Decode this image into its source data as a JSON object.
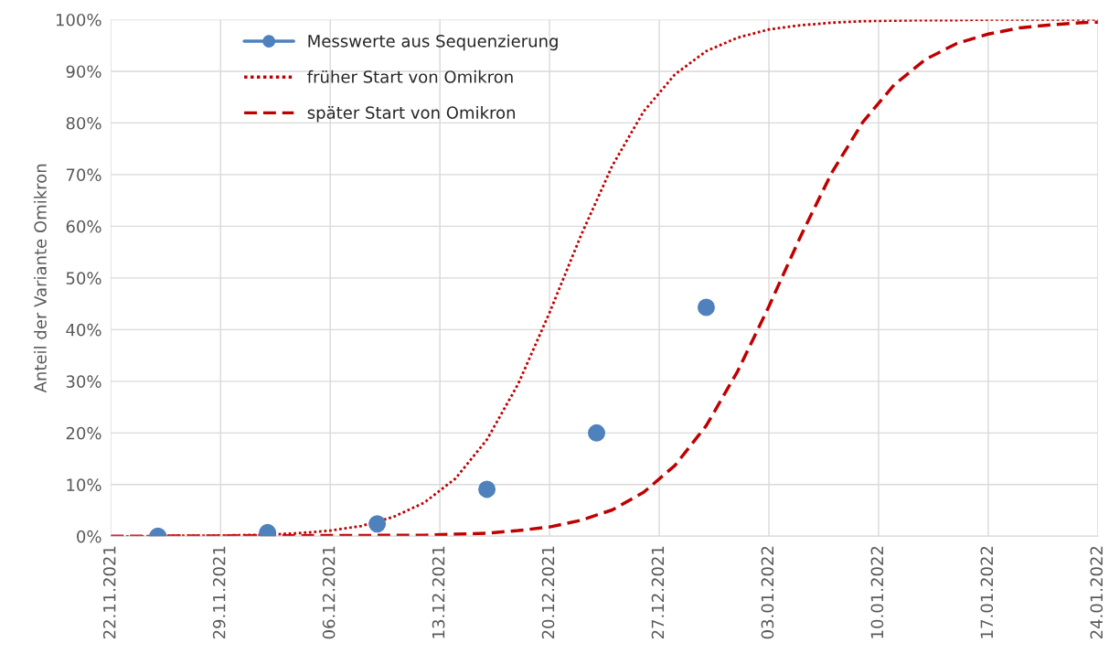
{
  "chart_data": {
    "type": "line",
    "ylabel": "Anteil der Variante Omikron",
    "xlim": [
      "2021-11-22",
      "2022-01-24"
    ],
    "xticks": [
      {
        "value": "2021-11-22",
        "label": "22.11.2021"
      },
      {
        "value": "2021-11-29",
        "label": "29.11.2021"
      },
      {
        "value": "2021-12-06",
        "label": "06.12.2021"
      },
      {
        "value": "2021-12-13",
        "label": "13.12.2021"
      },
      {
        "value": "2021-12-20",
        "label": "20.12.2021"
      },
      {
        "value": "2021-12-27",
        "label": "27.12.2021"
      },
      {
        "value": "2022-01-03",
        "label": "03.01.2022"
      },
      {
        "value": "2022-01-10",
        "label": "10.01.2022"
      },
      {
        "value": "2022-01-17",
        "label": "17.01.2022"
      },
      {
        "value": "2022-01-24",
        "label": "24.01.2022"
      }
    ],
    "ylim": [
      0,
      100
    ],
    "yticks": [
      {
        "value": 0,
        "label": "0%"
      },
      {
        "value": 10,
        "label": "10%"
      },
      {
        "value": 20,
        "label": "20%"
      },
      {
        "value": 30,
        "label": "30%"
      },
      {
        "value": 40,
        "label": "40%"
      },
      {
        "value": 50,
        "label": "50%"
      },
      {
        "value": 60,
        "label": "60%"
      },
      {
        "value": 70,
        "label": "70%"
      },
      {
        "value": 80,
        "label": "80%"
      },
      {
        "value": 90,
        "label": "90%"
      },
      {
        "value": 100,
        "label": "100%"
      }
    ],
    "grid": true,
    "legend": "top left",
    "series": [
      {
        "name": "Messwerte aus Sequenzierung",
        "type": "scatter",
        "marker": "circle",
        "color": "#4f81bd",
        "x": [
          "2021-11-25",
          "2021-12-02",
          "2021-12-09",
          "2021-12-16",
          "2021-12-23",
          "2021-12-30"
        ],
        "values": [
          0,
          0.7,
          2.4,
          9.1,
          20,
          44.3
        ]
      },
      {
        "name": "früher Start von Omikron",
        "line_style": "dotted",
        "color": "#c00000",
        "x": [
          "2021-11-22",
          "2021-11-24",
          "2021-11-26",
          "2021-11-28",
          "2021-11-30",
          "2021-12-02",
          "2021-12-04",
          "2021-12-06",
          "2021-12-08",
          "2021-12-10",
          "2021-12-12",
          "2021-12-14",
          "2021-12-16",
          "2021-12-18",
          "2021-12-20",
          "2021-12-22",
          "2021-12-24",
          "2021-12-26",
          "2021-12-28",
          "2021-12-30",
          "2022-01-01",
          "2022-01-03",
          "2022-01-05",
          "2022-01-07",
          "2022-01-09",
          "2022-01-11",
          "2022-01-13",
          "2022-01-15",
          "2022-01-17",
          "2022-01-19",
          "2022-01-21",
          "2022-01-24"
        ],
        "values": [
          0,
          0,
          0.1,
          0.1,
          0.2,
          0.3,
          0.6,
          1.1,
          2,
          3.7,
          6.5,
          11.2,
          18.7,
          29.5,
          43.3,
          58.2,
          71.7,
          82.2,
          89.4,
          93.9,
          96.5,
          98.1,
          98.9,
          99.4,
          99.7,
          99.8,
          99.9,
          99.9,
          100,
          100,
          100,
          100
        ]
      },
      {
        "name": "später Start von Omikron",
        "line_style": "dashed",
        "color": "#c00000",
        "x": [
          "2021-11-22",
          "2021-12-12",
          "2021-12-16",
          "2021-12-18",
          "2021-12-20",
          "2021-12-22",
          "2021-12-24",
          "2021-12-26",
          "2021-12-28",
          "2021-12-30",
          "2022-01-01",
          "2022-01-03",
          "2022-01-05",
          "2022-01-07",
          "2022-01-09",
          "2022-01-11",
          "2022-01-13",
          "2022-01-15",
          "2022-01-17",
          "2022-01-19",
          "2022-01-21",
          "2022-01-23",
          "2022-01-24"
        ],
        "values": [
          0,
          0.2,
          0.6,
          1.1,
          1.8,
          3.1,
          5.1,
          8.5,
          13.7,
          21.4,
          31.9,
          44.5,
          57.9,
          70.3,
          80.2,
          87.4,
          92.3,
          95.4,
          97.2,
          98.4,
          99,
          99.4,
          99.5
        ]
      }
    ]
  }
}
